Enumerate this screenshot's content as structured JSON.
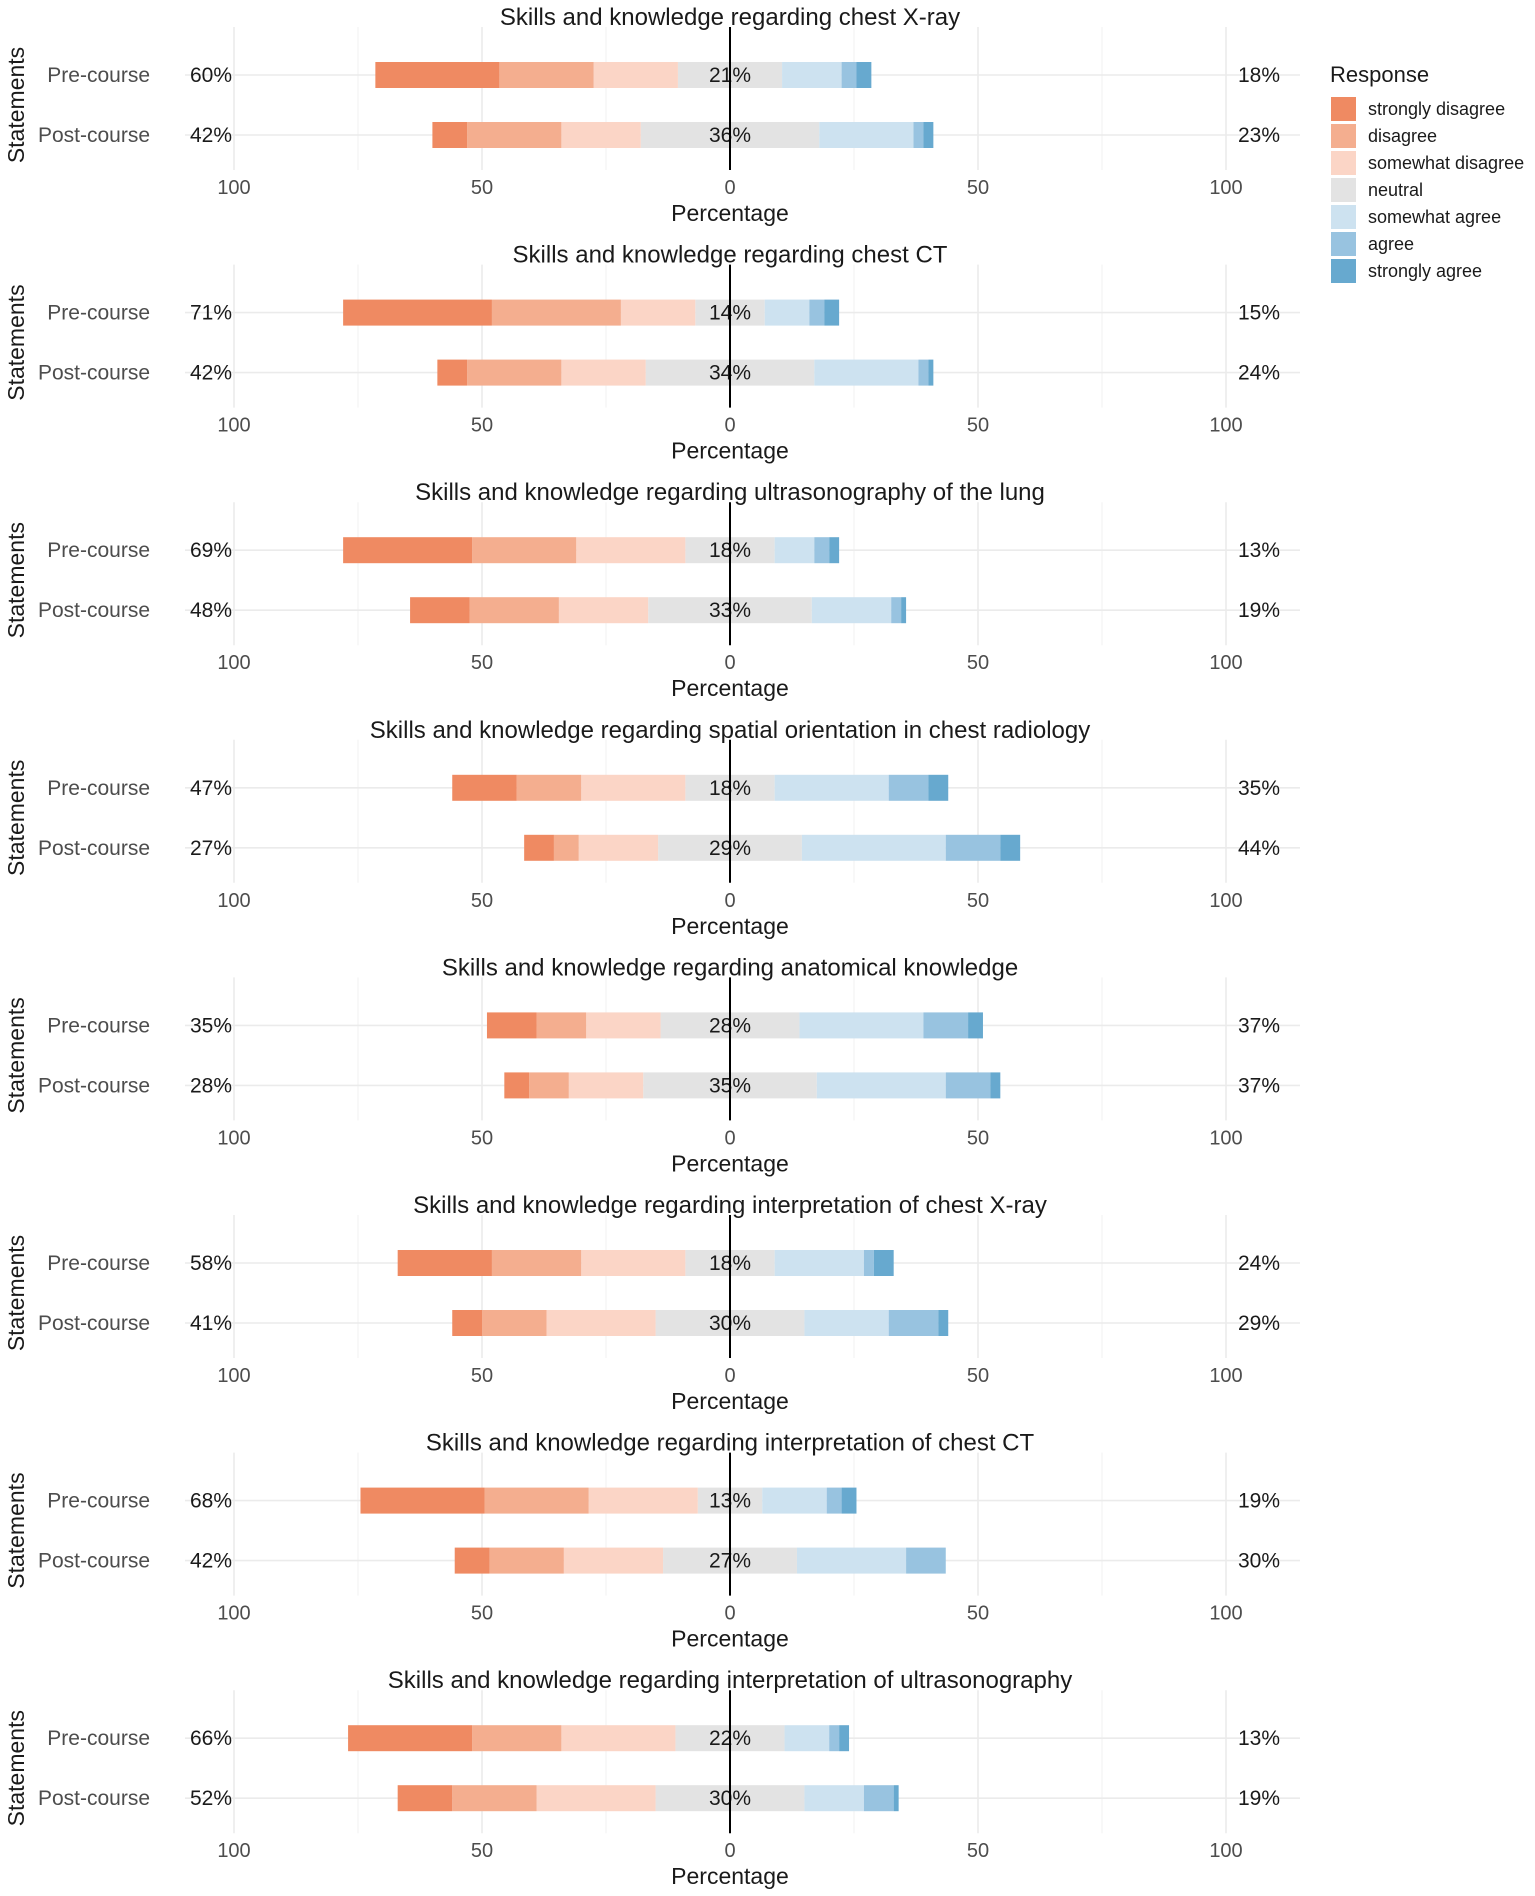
{
  "chart_data": {
    "type": "bar",
    "subtype": "diverging stacked bar (Likert)",
    "xlabel": "Percentage",
    "ylabel": "Statements",
    "xlim": [
      -100,
      100
    ],
    "x_ticks": [
      -100,
      -50,
      0,
      50,
      100
    ],
    "x_tick_labels": [
      "100",
      "50",
      "0",
      "50",
      "100"
    ],
    "grid": true,
    "legend": {
      "title": "Response",
      "position": "right",
      "entries": [
        "strongly disagree",
        "disagree",
        "somewhat disagree",
        "neutral",
        "somewhat agree",
        "agree",
        "strongly agree"
      ],
      "colors": [
        "#ef8a62",
        "#f4ae8f",
        "#fbd5c6",
        "#e3e3e3",
        "#cde2f0",
        "#98c3e0",
        "#67a9cf"
      ]
    },
    "panels": [
      {
        "title": "Skills and knowledge regarding chest X-ray",
        "rows": [
          {
            "label": "Pre-course",
            "low": "60%",
            "neutral": "21%",
            "high": "18%",
            "values": [
              25,
              19,
              17,
              21,
              12,
              3,
              3
            ]
          },
          {
            "label": "Post-course",
            "low": "42%",
            "neutral": "36%",
            "high": "23%",
            "values": [
              7,
              19,
              16,
              36,
              19,
              2,
              2
            ]
          }
        ]
      },
      {
        "title": "Skills and knowledge regarding chest CT",
        "rows": [
          {
            "label": "Pre-course",
            "low": "71%",
            "neutral": "14%",
            "high": "15%",
            "values": [
              30,
              26,
              15,
              14,
              9,
              3,
              3
            ]
          },
          {
            "label": "Post-course",
            "low": "42%",
            "neutral": "34%",
            "high": "24%",
            "values": [
              6,
              19,
              17,
              34,
              21,
              2,
              1
            ]
          }
        ]
      },
      {
        "title": "Skills and knowledge regarding ultrasonography of the lung",
        "rows": [
          {
            "label": "Pre-course",
            "low": "69%",
            "neutral": "18%",
            "high": "13%",
            "values": [
              26,
              21,
              22,
              18,
              8,
              3,
              2
            ]
          },
          {
            "label": "Post-course",
            "low": "48%",
            "neutral": "33%",
            "high": "19%",
            "values": [
              12,
              18,
              18,
              33,
              16,
              2,
              1
            ]
          }
        ]
      },
      {
        "title": "Skills and knowledge regarding spatial orientation in chest radiology",
        "rows": [
          {
            "label": "Pre-course",
            "low": "47%",
            "neutral": "18%",
            "high": "35%",
            "values": [
              13,
              13,
              21,
              18,
              23,
              8,
              4
            ]
          },
          {
            "label": "Post-course",
            "low": "27%",
            "neutral": "29%",
            "high": "44%",
            "values": [
              6,
              5,
              16,
              29,
              29,
              11,
              4
            ]
          }
        ]
      },
      {
        "title": "Skills and knowledge regarding anatomical knowledge",
        "rows": [
          {
            "label": "Pre-course",
            "low": "35%",
            "neutral": "28%",
            "high": "37%",
            "values": [
              10,
              10,
              15,
              28,
              25,
              9,
              3
            ]
          },
          {
            "label": "Post-course",
            "low": "28%",
            "neutral": "35%",
            "high": "37%",
            "values": [
              5,
              8,
              15,
              35,
              26,
              9,
              2
            ]
          }
        ]
      },
      {
        "title": "Skills and knowledge regarding interpretation of chest X-ray",
        "rows": [
          {
            "label": "Pre-course",
            "low": "58%",
            "neutral": "18%",
            "high": "24%",
            "values": [
              19,
              18,
              21,
              18,
              18,
              2,
              4
            ]
          },
          {
            "label": "Post-course",
            "low": "41%",
            "neutral": "30%",
            "high": "29%",
            "values": [
              6,
              13,
              22,
              30,
              17,
              10,
              2
            ]
          }
        ]
      },
      {
        "title": "Skills and knowledge regarding interpretation of chest CT",
        "rows": [
          {
            "label": "Pre-course",
            "low": "68%",
            "neutral": "13%",
            "high": "19%",
            "values": [
              25,
              21,
              22,
              13,
              13,
              3,
              3
            ]
          },
          {
            "label": "Post-course",
            "low": "42%",
            "neutral": "27%",
            "high": "30%",
            "values": [
              7,
              15,
              20,
              27,
              22,
              8,
              0
            ]
          }
        ]
      },
      {
        "title": "Skills and knowledge regarding interpretation of ultrasonography",
        "rows": [
          {
            "label": "Pre-course",
            "low": "66%",
            "neutral": "22%",
            "high": "13%",
            "values": [
              25,
              18,
              23,
              22,
              9,
              2,
              2
            ]
          },
          {
            "label": "Post-course",
            "low": "52%",
            "neutral": "30%",
            "high": "19%",
            "values": [
              11,
              17,
              24,
              30,
              12,
              6,
              1
            ]
          }
        ]
      }
    ]
  }
}
